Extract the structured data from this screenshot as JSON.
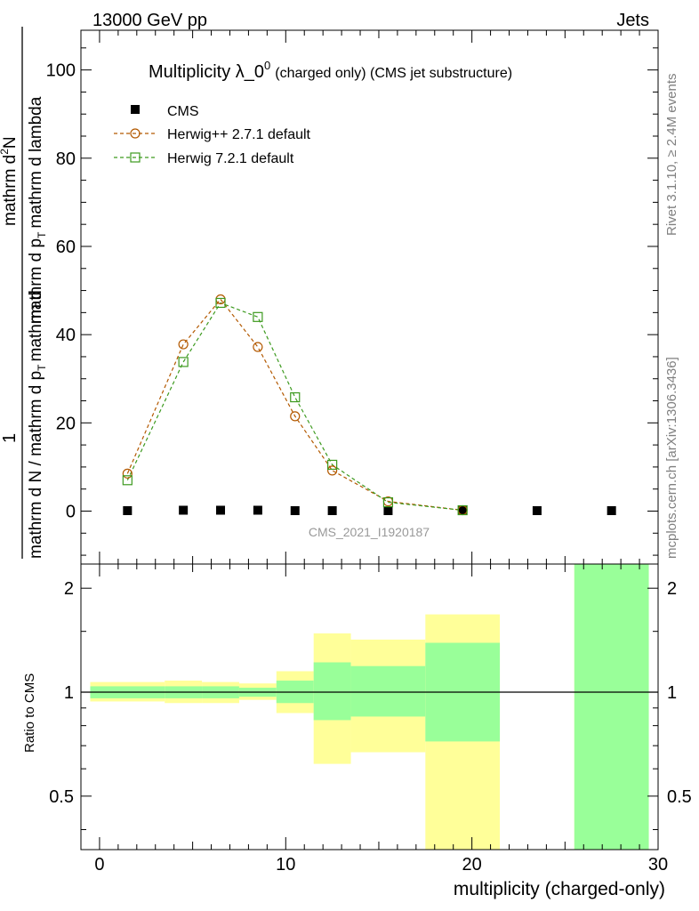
{
  "header": {
    "left": "13000 GeV pp",
    "right": "Jets"
  },
  "side": {
    "top": "Rivet 3.1.10, ≥ 2.4M events",
    "bottom": "mcplots.cern.ch [arXiv:1306.3436]"
  },
  "watermark": "CMS_2021_I1920187",
  "title": {
    "main": "Multiplicity λ_0",
    "sup": "0",
    "detail": "(charged only) (CMS jet substructure)"
  },
  "legend": [
    {
      "label": "CMS",
      "color": "#000000",
      "marker": "square-filled"
    },
    {
      "label": "Herwig++ 2.7.1 default",
      "color": "#b35900",
      "marker": "circle-open"
    },
    {
      "label": "Herwig 7.2.1 default",
      "color": "#3d9a1f",
      "marker": "square-open"
    }
  ],
  "main_ylabel": {
    "prefix": "1",
    "denominator": "mathrm d N / mathrm d p",
    "numerator_tail": "mathrm d",
    "sub_T": "T",
    "fraction": "mathrm d",
    "frac_sup": "2",
    "frac_N": "N",
    "bottom_frac": "mathrm d p",
    "bottom_tail": "mathrm d lambda"
  },
  "ratio_ylabel": "Ratio to CMS",
  "xlabel": "multiplicity (charged-only)",
  "chart_data": {
    "type": "line",
    "xlim": [
      -1,
      30
    ],
    "main_ylim": [
      -12,
      109
    ],
    "ratio_ylim": [
      0.35,
      2.35
    ],
    "x_ticks": [
      0,
      10,
      20,
      30
    ],
    "main_y_ticks": [
      0,
      20,
      40,
      60,
      80,
      100
    ],
    "ratio_y_ticks": [
      0.5,
      1,
      2
    ],
    "x": [
      1.5,
      4.5,
      6.5,
      8.5,
      10.5,
      12.5,
      15.5,
      19.5,
      23.5,
      27.5
    ],
    "series": [
      {
        "name": "CMS",
        "values": [
          0.1,
          0.2,
          0.2,
          0.2,
          0.1,
          0.1,
          0.1,
          0.1,
          0.1,
          0.1
        ]
      },
      {
        "name": "Herwig++ 2.7.1 default",
        "x": [
          1.5,
          4.5,
          6.5,
          8.5,
          10.5,
          12.5,
          15.5,
          19.5
        ],
        "values": [
          8.5,
          37.8,
          48.0,
          37.2,
          21.5,
          9.2,
          2.2,
          0.2
        ]
      },
      {
        "name": "Herwig 7.2.1 default",
        "x": [
          1.5,
          4.5,
          6.5,
          8.5,
          10.5,
          12.5,
          15.5,
          19.5
        ],
        "values": [
          7.0,
          33.8,
          47.2,
          44.0,
          25.8,
          10.5,
          2.0,
          0.2
        ]
      }
    ],
    "ratio_bands": [
      {
        "x0": -0.5,
        "x1": 3.5,
        "yel_lo": 0.94,
        "yel_hi": 1.07,
        "grn_lo": 0.96,
        "grn_hi": 1.04
      },
      {
        "x0": 3.5,
        "x1": 5.5,
        "yel_lo": 0.93,
        "yel_hi": 1.08,
        "grn_lo": 0.96,
        "grn_hi": 1.04
      },
      {
        "x0": 5.5,
        "x1": 7.5,
        "yel_lo": 0.93,
        "yel_hi": 1.07,
        "grn_lo": 0.96,
        "grn_hi": 1.04
      },
      {
        "x0": 7.5,
        "x1": 9.5,
        "yel_lo": 0.95,
        "yel_hi": 1.06,
        "grn_lo": 0.97,
        "grn_hi": 1.03
      },
      {
        "x0": 9.5,
        "x1": 11.5,
        "yel_lo": 0.87,
        "yel_hi": 1.15,
        "grn_lo": 0.93,
        "grn_hi": 1.08
      },
      {
        "x0": 11.5,
        "x1": 13.5,
        "yel_lo": 0.62,
        "yel_hi": 1.48,
        "grn_lo": 0.83,
        "grn_hi": 1.22
      },
      {
        "x0": 13.5,
        "x1": 17.5,
        "yel_lo": 0.67,
        "yel_hi": 1.42,
        "grn_lo": 0.85,
        "grn_hi": 1.19
      },
      {
        "x0": 17.5,
        "x1": 21.5,
        "yel_lo": 0.35,
        "yel_hi": 1.68,
        "grn_lo": 0.72,
        "grn_hi": 1.39
      },
      {
        "x0": 25.5,
        "x1": 29.5,
        "yel_lo": 0.35,
        "yel_hi": 2.35,
        "grn_lo": 0.35,
        "grn_hi": 2.35
      }
    ],
    "colors": {
      "green": "#99ff99",
      "yellow": "#ffff99",
      "herwigpp": "#b35900",
      "herwig7": "#3d9a1f"
    }
  }
}
